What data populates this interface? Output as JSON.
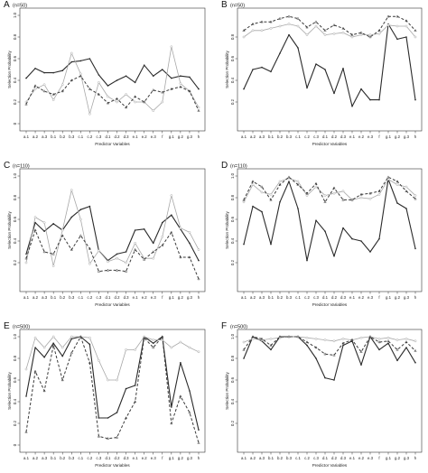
{
  "chart_data": [
    {
      "type": "line",
      "letter": "A",
      "n_label": "(n=50)",
      "xlabel": "Predictor Variables",
      "ylabel": "Selection Probability",
      "ylim": [
        0,
        1
      ],
      "yticks": [
        "0",
        "0.2",
        "0.4",
        "0.6",
        "0.8",
        "1.0"
      ],
      "categories": [
        "a.1",
        "a.2",
        "a.3",
        "b.1",
        "b.2",
        "b.3",
        "c.1",
        "c.2",
        "c.3",
        "d.1",
        "d.2",
        "d.3",
        "e.1",
        "e.2",
        "e.3",
        "f",
        "g.1",
        "g.2",
        "g.3",
        "h"
      ],
      "series": [
        {
          "style": "solid",
          "values": [
            0.42,
            0.51,
            0.47,
            0.47,
            0.49,
            0.57,
            0.58,
            0.6,
            0.45,
            0.35,
            0.4,
            0.44,
            0.38,
            0.54,
            0.44,
            0.5,
            0.42,
            0.44,
            0.43,
            0.32
          ]
        },
        {
          "style": "dotted",
          "values": [
            0.2,
            0.32,
            0.36,
            0.22,
            0.36,
            0.65,
            0.46,
            0.09,
            0.38,
            0.25,
            0.2,
            0.27,
            0.2,
            0.2,
            0.12,
            0.2,
            0.71,
            0.37,
            0.3,
            0.15
          ]
        },
        {
          "style": "dashed",
          "values": [
            0.18,
            0.35,
            0.3,
            0.27,
            0.3,
            0.4,
            0.44,
            0.32,
            0.27,
            0.19,
            0.23,
            0.15,
            0.25,
            0.2,
            0.31,
            0.29,
            0.32,
            0.34,
            0.3,
            0.12
          ]
        }
      ]
    },
    {
      "type": "line",
      "letter": "B",
      "n_label": "(n=50)",
      "xlabel": "Predictor Variables",
      "ylabel": "Selection Probability",
      "ylim": [
        0,
        1
      ],
      "yticks": [
        "0.2",
        "0.4",
        "0.6",
        "0.8"
      ],
      "categories": [
        "a.1",
        "a.2",
        "a.3",
        "b.1",
        "b.2",
        "b.3",
        "c.1",
        "c.2",
        "c.3",
        "d.1",
        "d.2",
        "d.3",
        "e.1",
        "e.2",
        "e.3",
        "f",
        "g.1",
        "g.2",
        "g.3",
        "h"
      ],
      "series": [
        {
          "style": "solid",
          "values": [
            0.32,
            0.5,
            0.52,
            0.48,
            0.65,
            0.82,
            0.7,
            0.33,
            0.55,
            0.5,
            0.28,
            0.51,
            0.16,
            0.32,
            0.22,
            0.22,
            0.92,
            0.78,
            0.8,
            0.22
          ]
        },
        {
          "style": "dotted",
          "values": [
            0.8,
            0.86,
            0.86,
            0.88,
            0.9,
            0.92,
            0.9,
            0.82,
            0.9,
            0.82,
            0.83,
            0.84,
            0.8,
            0.82,
            0.82,
            0.83,
            0.91,
            0.9,
            0.9,
            0.8
          ]
        },
        {
          "style": "dashed",
          "values": [
            0.86,
            0.92,
            0.94,
            0.94,
            0.97,
            0.99,
            0.97,
            0.89,
            0.94,
            0.86,
            0.91,
            0.88,
            0.82,
            0.84,
            0.8,
            0.86,
            0.99,
            0.99,
            0.95,
            0.86
          ]
        }
      ]
    },
    {
      "type": "line",
      "letter": "C",
      "n_label": "(n=110)",
      "xlabel": "Predictor Variables",
      "ylabel": "Selection Probability",
      "ylim": [
        0,
        1
      ],
      "yticks": [
        "0.2",
        "0.4",
        "0.6",
        "0.8",
        "1.0"
      ],
      "categories": [
        "a.1",
        "a.2",
        "a.3",
        "b.1",
        "b.2",
        "b.3",
        "c.1",
        "c.2",
        "c.3",
        "d.1",
        "d.2",
        "d.3",
        "e.1",
        "e.2",
        "e.3",
        "f",
        "g.1",
        "g.2",
        "g.3",
        "h"
      ],
      "series": [
        {
          "style": "solid",
          "values": [
            0.28,
            0.57,
            0.49,
            0.56,
            0.5,
            0.62,
            0.69,
            0.72,
            0.31,
            0.22,
            0.28,
            0.3,
            0.5,
            0.51,
            0.38,
            0.57,
            0.64,
            0.51,
            0.38,
            0.22
          ]
        },
        {
          "style": "dotted",
          "values": [
            0.2,
            0.62,
            0.57,
            0.17,
            0.5,
            0.87,
            0.6,
            0.19,
            0.31,
            0.21,
            0.24,
            0.2,
            0.38,
            0.24,
            0.24,
            0.44,
            0.82,
            0.52,
            0.48,
            0.32
          ]
        },
        {
          "style": "dashed",
          "values": [
            0.24,
            0.5,
            0.3,
            0.28,
            0.45,
            0.32,
            0.45,
            0.33,
            0.12,
            0.13,
            0.13,
            0.12,
            0.32,
            0.23,
            0.3,
            0.36,
            0.48,
            0.25,
            0.25,
            0.05
          ]
        }
      ]
    },
    {
      "type": "line",
      "letter": "D",
      "n_label": "(n=110)",
      "xlabel": "Predictor Variables",
      "ylabel": "Selection Probability",
      "ylim": [
        0,
        1
      ],
      "yticks": [
        "0.2",
        "0.4",
        "0.6",
        "0.8",
        "1.0"
      ],
      "categories": [
        "a.1",
        "a.2",
        "a.3",
        "b.1",
        "b.2",
        "b.3",
        "c.1",
        "c.2",
        "c.3",
        "d.1",
        "d.2",
        "d.3",
        "e.1",
        "e.2",
        "e.3",
        "f",
        "g.1",
        "g.2",
        "g.3",
        "h"
      ],
      "series": [
        {
          "style": "solid",
          "values": [
            0.37,
            0.72,
            0.67,
            0.37,
            0.76,
            0.95,
            0.7,
            0.22,
            0.59,
            0.49,
            0.26,
            0.52,
            0.42,
            0.4,
            0.3,
            0.42,
            0.97,
            0.75,
            0.7,
            0.33
          ]
        },
        {
          "style": "dotted",
          "values": [
            0.76,
            0.92,
            0.85,
            0.83,
            0.95,
            0.98,
            0.95,
            0.82,
            0.9,
            0.82,
            0.84,
            0.86,
            0.78,
            0.8,
            0.79,
            0.83,
            0.97,
            0.92,
            0.9,
            0.82
          ]
        },
        {
          "style": "dashed",
          "values": [
            0.78,
            0.95,
            0.9,
            0.78,
            0.92,
            0.99,
            0.92,
            0.84,
            0.93,
            0.76,
            0.89,
            0.78,
            0.78,
            0.83,
            0.84,
            0.86,
            0.99,
            0.95,
            0.86,
            0.79
          ]
        }
      ]
    },
    {
      "type": "line",
      "letter": "E",
      "n_label": "(n=500)",
      "xlabel": "Predictor Variables",
      "ylabel": "Selection Probability",
      "ylim": [
        0,
        1
      ],
      "yticks": [
        "0",
        "0.2",
        "0.4",
        "0.6",
        "0.8",
        "1.0"
      ],
      "categories": [
        "a.1",
        "a.2",
        "a.3",
        "b.1",
        "b.2",
        "b.3",
        "c.1",
        "c.2",
        "c.3",
        "d.1",
        "d.2",
        "d.3",
        "e.1",
        "e.2",
        "e.3",
        "f",
        "g.1",
        "g.2",
        "g.3",
        "h"
      ],
      "series": [
        {
          "style": "solid",
          "values": [
            0.45,
            0.9,
            0.81,
            0.94,
            0.82,
            0.98,
            1.0,
            0.93,
            0.25,
            0.25,
            0.3,
            0.52,
            0.55,
            1.0,
            0.94,
            1.0,
            0.35,
            0.76,
            0.5,
            0.14
          ]
        },
        {
          "style": "dotted",
          "values": [
            0.7,
            0.99,
            0.9,
            1.0,
            0.9,
            1.0,
            1.0,
            0.99,
            0.78,
            0.6,
            0.6,
            0.88,
            0.88,
            1.0,
            0.97,
            0.97,
            0.9,
            0.95,
            0.9,
            0.86
          ]
        },
        {
          "style": "dashed",
          "values": [
            0.12,
            0.68,
            0.5,
            0.92,
            0.6,
            0.85,
            1.0,
            0.76,
            0.08,
            0.06,
            0.07,
            0.25,
            0.4,
            0.99,
            0.9,
            1.0,
            0.2,
            0.45,
            0.3,
            0.02
          ]
        }
      ]
    },
    {
      "type": "line",
      "letter": "F",
      "n_label": "(n=500)",
      "xlabel": "Predictor Variables",
      "ylabel": "Selection Probability",
      "ylim": [
        0,
        1
      ],
      "yticks": [
        "0.2",
        "0.4",
        "0.6",
        "0.8",
        "1.0"
      ],
      "categories": [
        "a.1",
        "a.2",
        "a.3",
        "b.1",
        "b.2",
        "b.3",
        "c.1",
        "c.2",
        "c.3",
        "d.1",
        "d.2",
        "d.3",
        "e.1",
        "e.2",
        "e.3",
        "f",
        "g.1",
        "g.2",
        "g.3",
        "h"
      ],
      "series": [
        {
          "style": "solid",
          "values": [
            0.8,
            1.0,
            0.96,
            0.88,
            1.0,
            1.0,
            1.0,
            0.92,
            0.8,
            0.62,
            0.6,
            0.92,
            0.96,
            0.74,
            1.0,
            0.88,
            0.94,
            0.78,
            0.9,
            0.76
          ]
        },
        {
          "style": "dotted",
          "values": [
            0.95,
            0.98,
            0.97,
            0.98,
            0.99,
            1.0,
            1.0,
            0.99,
            0.98,
            0.97,
            0.96,
            0.98,
            0.97,
            0.99,
            1.0,
            0.98,
            0.99,
            0.97,
            0.98,
            0.96
          ]
        },
        {
          "style": "dashed",
          "values": [
            0.88,
            1.0,
            0.98,
            0.92,
            1.0,
            1.0,
            1.0,
            0.95,
            0.9,
            0.84,
            0.83,
            0.94,
            0.97,
            0.86,
            1.0,
            0.95,
            0.96,
            0.88,
            0.95,
            0.87
          ]
        }
      ]
    }
  ]
}
